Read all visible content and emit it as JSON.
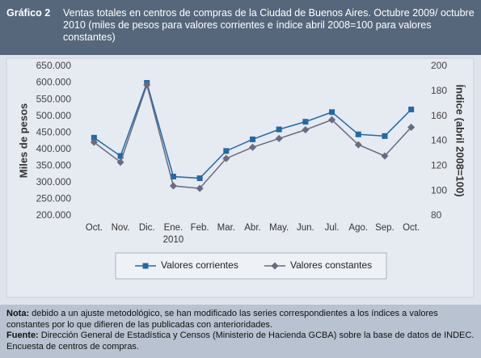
{
  "header": {
    "label": "Gráfico 2",
    "title": "Ventas totales en centros de compras de la Ciudad de Buenos Aires. Octubre 2009/ octubre 2010 (miles de pesos para valores corrientes e índice abril 2008=100 para valores constantes)"
  },
  "chart_data": {
    "type": "line",
    "categories": [
      "Oct.",
      "Nov.",
      "Dic.",
      "Ene. 2010",
      "Feb.",
      "Mar.",
      "Abr.",
      "May.",
      "Jun.",
      "Jul.",
      "Ago.",
      "Sep.",
      "Oct."
    ],
    "y_label": "Miles de pesos",
    "y2_label": "Índice (abril 2008=100)",
    "series": [
      {
        "name": "Valores corrientes",
        "color": "#1f6aa8",
        "marker": "square",
        "values": [
          435000,
          380000,
          600000,
          318000,
          313000,
          395000,
          430000,
          460000,
          483000,
          512000,
          445000,
          440000,
          520000
        ]
      },
      {
        "name": "Valores constantes",
        "color": "#6a6a80",
        "marker": "diamond",
        "axis": "y2",
        "values": [
          139,
          123,
          185,
          104,
          102,
          126,
          135,
          142,
          149,
          157,
          137,
          128,
          151
        ]
      }
    ],
    "ylim": [
      200000,
      650000
    ],
    "yticks": [
      {
        "value": 200000,
        "label": "200.000"
      },
      {
        "value": 250000,
        "label": "250.000"
      },
      {
        "value": 300000,
        "label": "300.000"
      },
      {
        "value": 350000,
        "label": "350.000"
      },
      {
        "value": 400000,
        "label": "400.000"
      },
      {
        "value": 450000,
        "label": "450.000"
      },
      {
        "value": 500000,
        "label": "500.000"
      },
      {
        "value": 550000,
        "label": "550.000"
      },
      {
        "value": 600000,
        "label": "600.000"
      },
      {
        "value": 650000,
        "label": "650.000"
      }
    ],
    "y2lim": [
      80,
      200
    ],
    "y2ticks": [
      80,
      100,
      120,
      140,
      160,
      180,
      200
    ]
  },
  "notes": [
    {
      "label": "Nota:",
      "text": "debido a un ajuste metodológico, se han modificado las series correspondientes a los índices a valores constantes por lo que difieren de las publicadas con anterioridades."
    },
    {
      "label": "Fuente:",
      "text": "Dirección General de Estadística y Censos (Ministerio de Hacienda GCBA) sobre la base de datos de INDEC. Encuesta de centros de compras."
    }
  ]
}
